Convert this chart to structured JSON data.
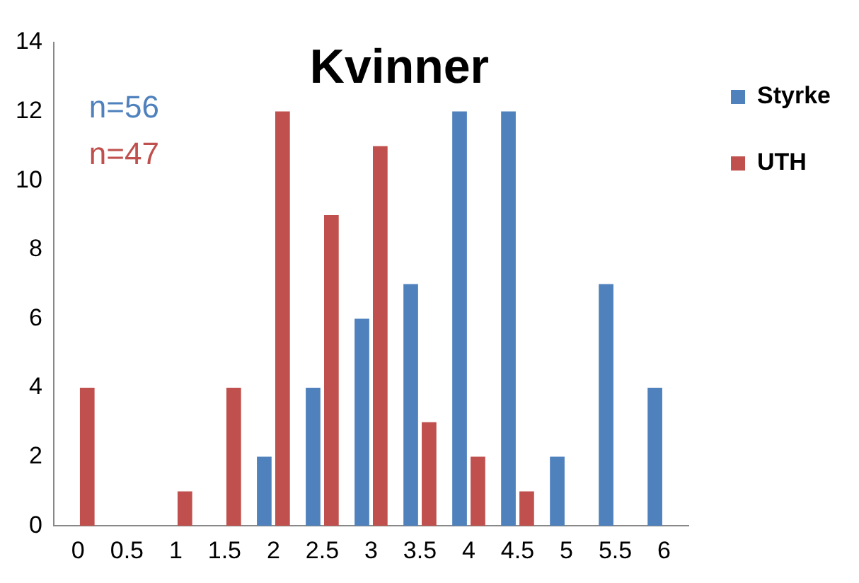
{
  "chart_data": {
    "type": "bar",
    "title": "Kvinner",
    "categories": [
      "0",
      "0.5",
      "1",
      "1.5",
      "2",
      "2.5",
      "3",
      "3.5",
      "4",
      "4.5",
      "5",
      "5.5",
      "6"
    ],
    "series": [
      {
        "name": "Styrke",
        "color": "#4f81bd",
        "values": [
          0,
          0,
          0,
          0,
          2,
          4,
          6,
          7,
          12,
          12,
          2,
          7,
          4
        ]
      },
      {
        "name": "UTH",
        "color": "#c0504d",
        "values": [
          4,
          0,
          1,
          4,
          12,
          9,
          11,
          3,
          2,
          1,
          0,
          0,
          0
        ]
      }
    ],
    "annotations": [
      "n=56",
      "n=47"
    ],
    "ylim": [
      0,
      14
    ],
    "yticks": [
      0,
      2,
      4,
      6,
      8,
      10,
      12,
      14
    ],
    "grid": false,
    "legend": "top right"
  }
}
